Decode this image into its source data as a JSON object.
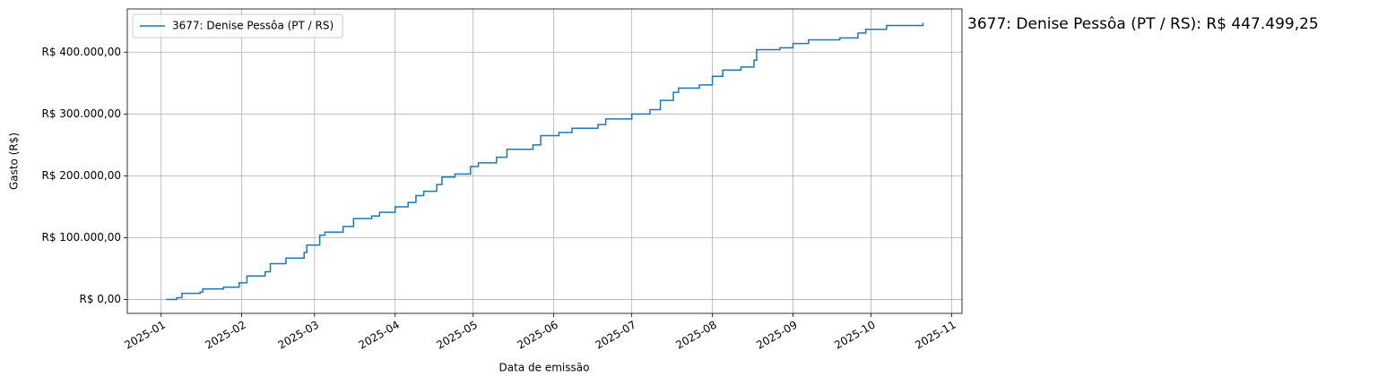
{
  "chart_data": {
    "type": "line",
    "step": "post",
    "x_label": "Data de emissão",
    "y_label": "Gasto (R$)",
    "annotation": "3677: Denise Pessôa (PT / RS): R$ 447.499,25",
    "grid": true,
    "legend": "upper left",
    "x": [
      "2025-01-03",
      "2025-01-07",
      "2025-01-09",
      "2025-01-16",
      "2025-01-17",
      "2025-01-25",
      "2025-01-31",
      "2025-02-03",
      "2025-02-10",
      "2025-02-12",
      "2025-02-18",
      "2025-02-25",
      "2025-02-26",
      "2025-03-03",
      "2025-03-05",
      "2025-03-12",
      "2025-03-16",
      "2025-03-23",
      "2025-03-26",
      "2025-04-01",
      "2025-04-06",
      "2025-04-09",
      "2025-04-12",
      "2025-04-17",
      "2025-04-19",
      "2025-04-24",
      "2025-04-30",
      "2025-05-03",
      "2025-05-10",
      "2025-05-14",
      "2025-05-24",
      "2025-05-27",
      "2025-06-03",
      "2025-06-08",
      "2025-06-18",
      "2025-06-21",
      "2025-07-01",
      "2025-07-08",
      "2025-07-12",
      "2025-07-17",
      "2025-07-19",
      "2025-07-27",
      "2025-08-01",
      "2025-08-05",
      "2025-08-12",
      "2025-08-17",
      "2025-08-18",
      "2025-08-27",
      "2025-09-01",
      "2025-09-07",
      "2025-09-19",
      "2025-09-26",
      "2025-09-29",
      "2025-10-07",
      "2025-10-21"
    ],
    "series": [
      {
        "name": "3677: Denise Pessôa (PT / RS)",
        "color": "#1f77b4",
        "values": [
          0,
          3000,
          10000,
          12000,
          17000,
          20000,
          27000,
          38000,
          45000,
          58000,
          67000,
          76000,
          88000,
          104000,
          109000,
          118000,
          131000,
          135000,
          141000,
          150000,
          157000,
          168000,
          175000,
          186000,
          198000,
          203000,
          215000,
          221000,
          230000,
          243000,
          250000,
          265000,
          270000,
          277000,
          283000,
          292000,
          300000,
          307000,
          322000,
          335000,
          342000,
          347000,
          361000,
          371000,
          376000,
          387000,
          404000,
          407000,
          414000,
          420000,
          423000,
          431000,
          437000,
          443000,
          447499.25
        ]
      }
    ],
    "xlim": [
      "2024-12-19",
      "2025-11-05"
    ],
    "xticks": [
      "2025-01",
      "2025-02",
      "2025-03",
      "2025-04",
      "2025-05",
      "2025-06",
      "2025-07",
      "2025-08",
      "2025-09",
      "2025-10",
      "2025-11"
    ],
    "ylim": [
      -22375,
      469874
    ],
    "yticks": [
      {
        "value": 0,
        "label": "R$ 0,00"
      },
      {
        "value": 100000,
        "label": "R$ 100.000,00"
      },
      {
        "value": 200000,
        "label": "R$ 200.000,00"
      },
      {
        "value": 300000,
        "label": "R$ 300.000,00"
      },
      {
        "value": 400000,
        "label": "R$ 400.000,00"
      }
    ]
  }
}
